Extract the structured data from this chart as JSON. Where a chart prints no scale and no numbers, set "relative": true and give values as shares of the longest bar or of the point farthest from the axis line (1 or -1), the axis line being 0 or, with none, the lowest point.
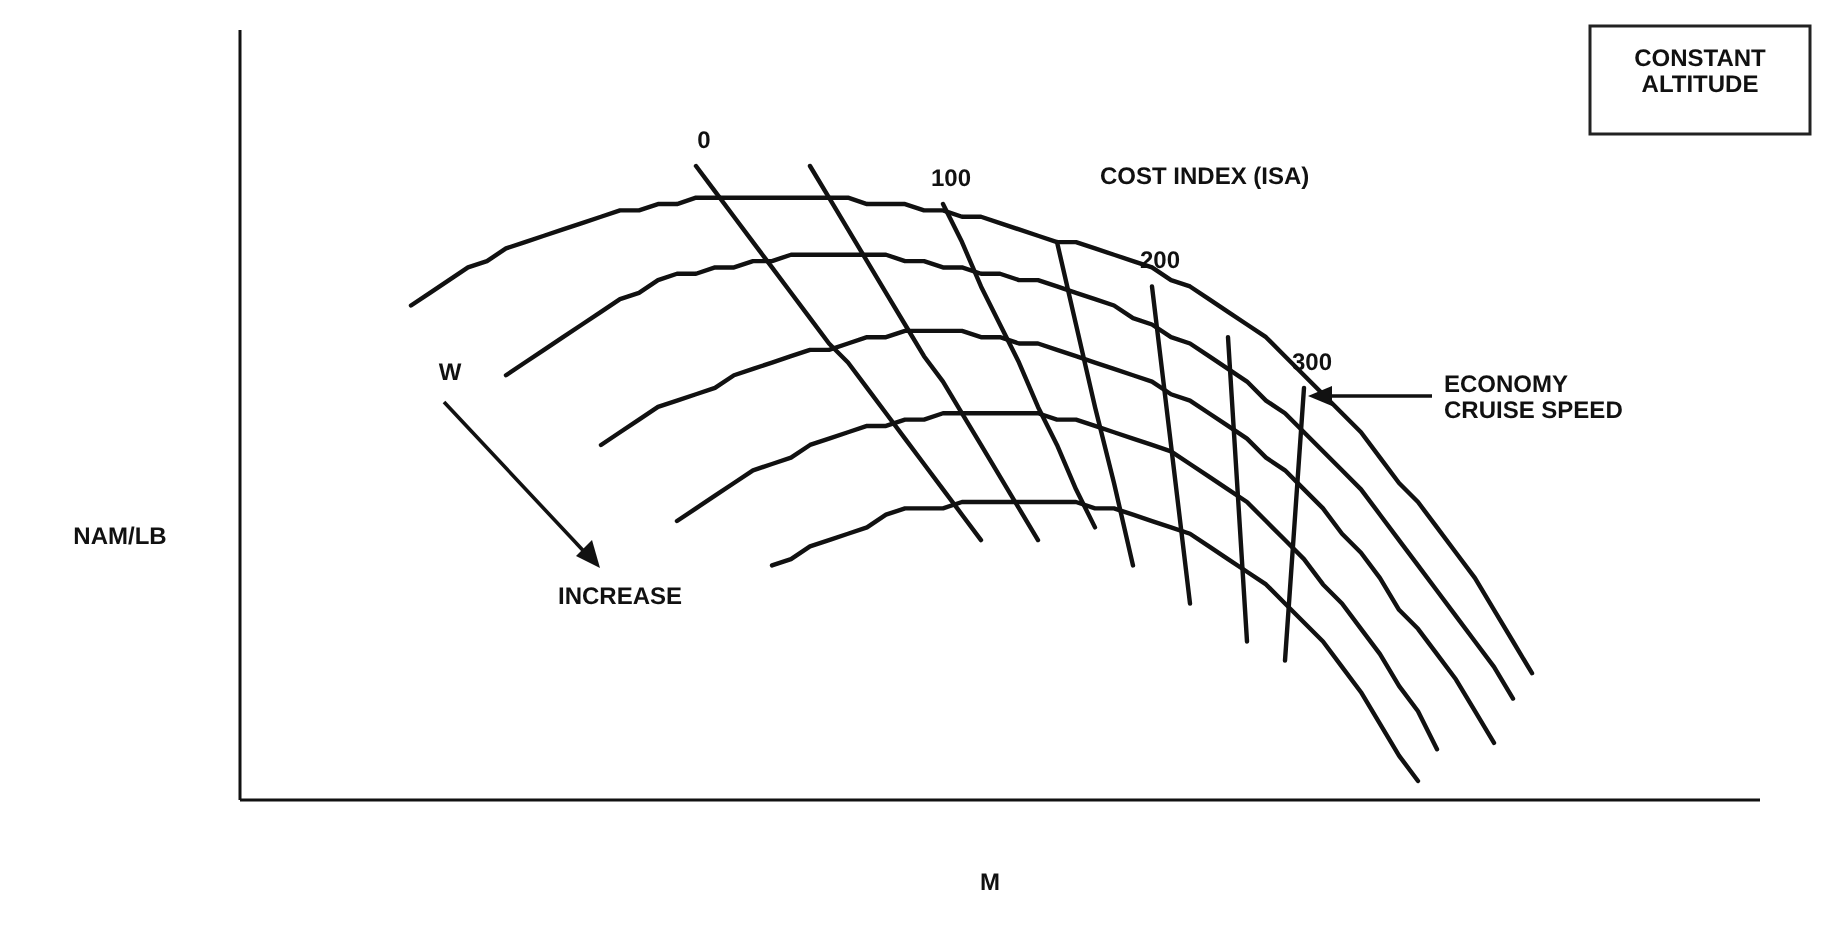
{
  "chart_data": {
    "type": "line",
    "relative": true,
    "xlabel": "M",
    "ylabel": "NAM/LB",
    "line_style": "solid",
    "categories": [
      null,
      null,
      null,
      null,
      null,
      null,
      null,
      null,
      null,
      null,
      null,
      null,
      null,
      null,
      null,
      null,
      null,
      null,
      null,
      null,
      null,
      null,
      null,
      null,
      null,
      null,
      null,
      null,
      null,
      null,
      null,
      null,
      null,
      null,
      null,
      null,
      null,
      null,
      null,
      null,
      null,
      null,
      null,
      null,
      null,
      null,
      null,
      null,
      null,
      null,
      null,
      null,
      null,
      null,
      null,
      null,
      null,
      null,
      null,
      null,
      null,
      null,
      null,
      null,
      null,
      null,
      null,
      null,
      null,
      null,
      null,
      null,
      null,
      null,
      null,
      null,
      null,
      null,
      null,
      null,
      null
    ],
    "annotations": [
      "CONSTANT ALTITUDE",
      "COST INDEX (ISA)",
      "W",
      "INCREASE",
      "ECONOMY CRUISE SPEED"
    ],
    "series": [
      {
        "color": "#111111",
        "values": [
          null,
          null,
          null,
          null,
          null,
          null,
          null,
          null,
          null,
          0.78,
          0.8,
          0.82,
          0.84,
          0.85,
          0.87,
          0.88,
          0.89,
          0.9,
          0.91,
          0.92,
          0.93,
          0.93,
          0.94,
          0.94,
          0.95,
          0.95,
          0.95,
          0.95,
          0.95,
          0.95,
          0.95,
          0.95,
          0.95,
          0.94,
          0.94,
          0.94,
          0.93,
          0.93,
          0.92,
          0.92,
          0.91,
          0.9,
          0.89,
          0.88,
          0.88,
          0.87,
          0.86,
          0.85,
          0.84,
          0.82,
          0.81,
          0.79,
          0.77,
          0.75,
          0.73,
          0.7,
          0.67,
          0.64,
          0.61,
          0.58,
          0.54,
          0.5,
          0.47,
          0.43,
          0.39,
          0.35,
          0.3,
          0.25,
          0.2,
          null,
          null,
          null,
          null,
          null,
          null,
          null,
          null,
          null,
          null,
          null,
          null
        ]
      },
      {
        "color": "#111111",
        "values": [
          null,
          null,
          null,
          null,
          null,
          null,
          null,
          null,
          null,
          null,
          null,
          null,
          null,
          null,
          0.67,
          0.69,
          0.71,
          0.73,
          0.75,
          0.77,
          0.79,
          0.8,
          0.82,
          0.83,
          0.83,
          0.84,
          0.84,
          0.85,
          0.85,
          0.86,
          0.86,
          0.86,
          0.86,
          0.86,
          0.86,
          0.85,
          0.85,
          0.84,
          0.84,
          0.83,
          0.83,
          0.82,
          0.82,
          0.81,
          0.8,
          0.79,
          0.78,
          0.76,
          0.75,
          0.73,
          0.72,
          0.7,
          0.68,
          0.66,
          0.63,
          0.61,
          0.58,
          0.55,
          0.52,
          0.49,
          0.45,
          0.41,
          0.37,
          0.33,
          0.29,
          0.25,
          0.21,
          0.16,
          null,
          null,
          null,
          null,
          null,
          null,
          null,
          null,
          null,
          null,
          null,
          null,
          null
        ]
      },
      {
        "color": "#111111",
        "values": [
          null,
          null,
          null,
          null,
          null,
          null,
          null,
          null,
          null,
          null,
          null,
          null,
          null,
          null,
          null,
          null,
          null,
          null,
          null,
          0.56,
          0.58,
          0.6,
          0.62,
          0.63,
          0.64,
          0.65,
          0.67,
          0.68,
          0.69,
          0.7,
          0.71,
          0.71,
          0.72,
          0.73,
          0.73,
          0.74,
          0.74,
          0.74,
          0.74,
          0.73,
          0.73,
          0.72,
          0.72,
          0.71,
          0.7,
          0.69,
          0.68,
          0.67,
          0.66,
          0.64,
          0.63,
          0.61,
          0.59,
          0.57,
          0.54,
          0.52,
          0.49,
          0.46,
          0.42,
          0.39,
          0.35,
          0.3,
          0.27,
          0.23,
          0.19,
          0.14,
          0.09,
          null,
          null,
          null,
          null,
          null,
          null,
          null,
          null,
          null,
          null,
          null,
          null,
          null,
          null
        ]
      },
      {
        "color": "#111111",
        "values": [
          null,
          null,
          null,
          null,
          null,
          null,
          null,
          null,
          null,
          null,
          null,
          null,
          null,
          null,
          null,
          null,
          null,
          null,
          null,
          null,
          null,
          null,
          null,
          0.44,
          0.46,
          0.48,
          0.5,
          0.52,
          0.53,
          0.54,
          0.56,
          0.57,
          0.58,
          0.59,
          0.59,
          0.6,
          0.6,
          0.61,
          0.61,
          0.61,
          0.61,
          0.61,
          0.61,
          0.6,
          0.6,
          0.59,
          0.58,
          0.57,
          0.56,
          0.55,
          0.53,
          0.51,
          0.49,
          0.47,
          0.44,
          0.41,
          0.38,
          0.34,
          0.31,
          0.27,
          0.23,
          0.18,
          0.14,
          0.08,
          null,
          null,
          null,
          null,
          null,
          null,
          null,
          null,
          null,
          null,
          null,
          null,
          null,
          null,
          null,
          null,
          null
        ]
      },
      {
        "color": "#111111",
        "values": [
          null,
          null,
          null,
          null,
          null,
          null,
          null,
          null,
          null,
          null,
          null,
          null,
          null,
          null,
          null,
          null,
          null,
          null,
          null,
          null,
          null,
          null,
          null,
          null,
          null,
          null,
          null,
          null,
          0.37,
          0.38,
          0.4,
          0.41,
          0.42,
          0.43,
          0.45,
          0.46,
          0.46,
          0.46,
          0.47,
          0.47,
          0.47,
          0.47,
          0.47,
          0.47,
          0.47,
          0.46,
          0.46,
          0.45,
          0.44,
          0.43,
          0.42,
          0.4,
          0.38,
          0.36,
          0.34,
          0.31,
          0.28,
          0.25,
          0.21,
          0.17,
          0.12,
          0.07,
          0.03,
          null,
          null,
          null,
          null,
          null,
          null,
          null,
          null,
          null,
          null,
          null,
          null,
          null,
          null,
          null,
          null,
          null,
          null
        ]
      },
      {
        "name": "0",
        "color": "#111111",
        "values": [
          null,
          null,
          null,
          null,
          null,
          null,
          null,
          null,
          null,
          null,
          null,
          null,
          null,
          null,
          null,
          null,
          null,
          null,
          null,
          null,
          null,
          null,
          null,
          null,
          1.0,
          0.96,
          0.92,
          0.88,
          0.84,
          0.8,
          0.76,
          0.72,
          0.69,
          0.65,
          0.61,
          0.57,
          0.53,
          0.49,
          0.45,
          0.41,
          null,
          null,
          null,
          null,
          null,
          null,
          null,
          null,
          null,
          null,
          null,
          null,
          null,
          null,
          null,
          null,
          null,
          null,
          null,
          null,
          null,
          null,
          null,
          null,
          null,
          null,
          null,
          null,
          null,
          null,
          null,
          null,
          null,
          null,
          null,
          null,
          null,
          null,
          null,
          null,
          null
        ]
      },
      {
        "color": "#111111",
        "values": [
          null,
          null,
          null,
          null,
          null,
          null,
          null,
          null,
          null,
          null,
          null,
          null,
          null,
          null,
          null,
          null,
          null,
          null,
          null,
          null,
          null,
          null,
          null,
          null,
          null,
          null,
          null,
          null,
          null,
          null,
          1.0,
          0.95,
          0.9,
          0.85,
          0.8,
          0.75,
          0.7,
          0.66,
          0.61,
          0.56,
          0.51,
          0.46,
          0.41,
          null,
          null,
          null,
          null,
          null,
          null,
          null,
          null,
          null,
          null,
          null,
          null,
          null,
          null,
          null,
          null,
          null,
          null,
          null,
          null,
          null,
          null,
          null,
          null,
          null,
          null,
          null,
          null,
          null,
          null,
          null,
          null,
          null,
          null,
          null,
          null,
          null,
          null
        ]
      },
      {
        "name": "100",
        "color": "#111111",
        "values": [
          null,
          null,
          null,
          null,
          null,
          null,
          null,
          null,
          null,
          null,
          null,
          null,
          null,
          null,
          null,
          null,
          null,
          null,
          null,
          null,
          null,
          null,
          null,
          null,
          null,
          null,
          null,
          null,
          null,
          null,
          null,
          null,
          null,
          null,
          null,
          null,
          null,
          0.94,
          0.88,
          0.81,
          0.75,
          0.69,
          0.62,
          0.56,
          0.49,
          0.43,
          null,
          null,
          null,
          null,
          null,
          null,
          null,
          null,
          null,
          null,
          null,
          null,
          null,
          null,
          null,
          null,
          null,
          null,
          null,
          null,
          null,
          null,
          null,
          null,
          null,
          null,
          null,
          null,
          null,
          null,
          null,
          null,
          null,
          null,
          null
        ]
      },
      {
        "color": "#111111",
        "values": [
          null,
          null,
          null,
          null,
          null,
          null,
          null,
          null,
          null,
          null,
          null,
          null,
          null,
          null,
          null,
          null,
          null,
          null,
          null,
          null,
          null,
          null,
          null,
          null,
          null,
          null,
          null,
          null,
          null,
          null,
          null,
          null,
          null,
          null,
          null,
          null,
          null,
          null,
          null,
          null,
          null,
          null,
          null,
          0.88,
          0.75,
          0.62,
          0.5,
          0.37,
          null,
          null,
          null,
          null,
          null,
          null,
          null,
          null,
          null,
          null,
          null,
          null,
          null,
          null,
          null,
          null,
          null,
          null,
          null,
          null,
          null,
          null,
          null,
          null,
          null,
          null,
          null,
          null,
          null,
          null,
          null,
          null,
          null
        ]
      },
      {
        "name": "200",
        "color": "#111111",
        "values": [
          null,
          null,
          null,
          null,
          null,
          null,
          null,
          null,
          null,
          null,
          null,
          null,
          null,
          null,
          null,
          null,
          null,
          null,
          null,
          null,
          null,
          null,
          null,
          null,
          null,
          null,
          null,
          null,
          null,
          null,
          null,
          null,
          null,
          null,
          null,
          null,
          null,
          null,
          null,
          null,
          null,
          null,
          null,
          null,
          null,
          null,
          null,
          null,
          0.81,
          0.56,
          0.31,
          null,
          null,
          null,
          null,
          null,
          null,
          null,
          null,
          null,
          null,
          null,
          null,
          null,
          null,
          null,
          null,
          null,
          null,
          null,
          null,
          null,
          null,
          null,
          null,
          null,
          null,
          null,
          null,
          null,
          null
        ]
      },
      {
        "color": "#111111",
        "values": [
          null,
          null,
          null,
          null,
          null,
          null,
          null,
          null,
          null,
          null,
          null,
          null,
          null,
          null,
          null,
          null,
          null,
          null,
          null,
          null,
          null,
          null,
          null,
          null,
          null,
          null,
          null,
          null,
          null,
          null,
          null,
          null,
          null,
          null,
          null,
          null,
          null,
          null,
          null,
          null,
          null,
          null,
          null,
          null,
          null,
          null,
          null,
          null,
          null,
          null,
          null,
          null,
          0.73,
          0.25,
          null,
          null,
          null,
          null,
          null,
          null,
          null,
          null,
          null,
          null,
          null,
          null,
          null,
          null,
          null,
          null,
          null,
          null,
          null,
          null,
          null,
          null,
          null,
          null,
          null,
          null,
          null
        ]
      },
      {
        "name": "300",
        "color": "#111111",
        "values": [
          null,
          null,
          null,
          null,
          null,
          null,
          null,
          null,
          null,
          null,
          null,
          null,
          null,
          null,
          null,
          null,
          null,
          null,
          null,
          null,
          null,
          null,
          null,
          null,
          null,
          null,
          null,
          null,
          null,
          null,
          null,
          null,
          null,
          null,
          null,
          null,
          null,
          null,
          null,
          null,
          null,
          null,
          null,
          null,
          null,
          null,
          null,
          null,
          null,
          null,
          null,
          null,
          null,
          null,
          null,
          0.22,
          0.65,
          null,
          null,
          null,
          null,
          null,
          null,
          null,
          null,
          null,
          null,
          null,
          null,
          null,
          null,
          null,
          null,
          null,
          null,
          null,
          null,
          null,
          null,
          null,
          null
        ]
      }
    ]
  }
}
